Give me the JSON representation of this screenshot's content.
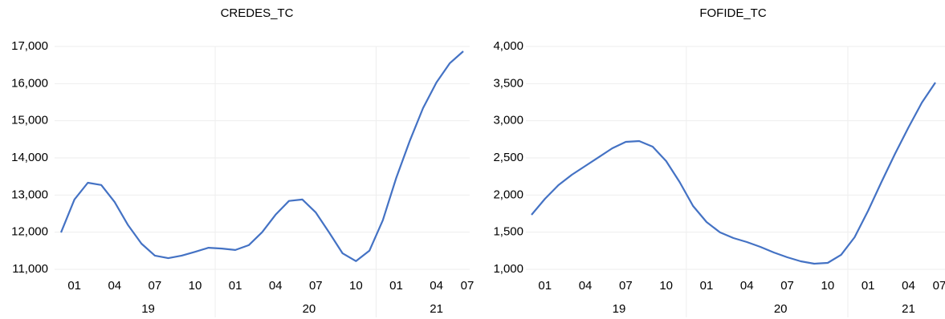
{
  "chart_data": [
    {
      "type": "line",
      "title": "CREDES_TC",
      "color": "#4472c4",
      "grid": true,
      "categories": [
        "01",
        null,
        null,
        "04",
        null,
        null,
        "07",
        null,
        null,
        "10",
        null,
        null,
        "01",
        null,
        null,
        "04",
        null,
        null,
        "07",
        null,
        null,
        "10",
        null,
        null,
        "01",
        null,
        null,
        "04",
        null,
        null,
        "07"
      ],
      "groups": [
        "19",
        "20",
        "21"
      ],
      "values": [
        11990,
        12880,
        13330,
        13270,
        12810,
        12190,
        11690,
        11370,
        11300,
        11370,
        11470,
        11580,
        11560,
        11520,
        11650,
        12000,
        12470,
        12840,
        12880,
        12530,
        11990,
        11430,
        11220,
        11500,
        12320,
        13460,
        14450,
        15340,
        16030,
        16550,
        16870
      ],
      "ylim": [
        11000,
        17000
      ],
      "yticks": [
        {
          "value": 11000,
          "label": "11,000"
        },
        {
          "value": 12000,
          "label": "12,000"
        },
        {
          "value": 13000,
          "label": "13,000"
        },
        {
          "value": 14000,
          "label": "14,000"
        },
        {
          "value": 15000,
          "label": "15,000"
        },
        {
          "value": 16000,
          "label": "16,000"
        },
        {
          "value": 17000,
          "label": "17,000"
        }
      ]
    },
    {
      "type": "line",
      "title": "FOFIDE_TC",
      "color": "#4472c4",
      "grid": true,
      "categories": [
        "01",
        null,
        null,
        "04",
        null,
        null,
        "07",
        null,
        null,
        "10",
        null,
        null,
        "01",
        null,
        null,
        "04",
        null,
        null,
        "07",
        null,
        null,
        "10",
        null,
        null,
        "01",
        null,
        null,
        "04",
        null,
        null,
        "07"
      ],
      "groups": [
        "19",
        "20",
        "21"
      ],
      "values": [
        1734,
        1950,
        2133,
        2273,
        2392,
        2510,
        2630,
        2716,
        2727,
        2651,
        2457,
        2176,
        1853,
        1637,
        1497,
        1421,
        1367,
        1302,
        1227,
        1162,
        1108,
        1076,
        1086,
        1195,
        1432,
        1788,
        2176,
        2554,
        2910,
        3245,
        3514
      ],
      "ylim": [
        1000,
        4000
      ],
      "yticks": [
        {
          "value": 1000,
          "label": "1,000"
        },
        {
          "value": 1500,
          "label": "1,500"
        },
        {
          "value": 2000,
          "label": "2,000"
        },
        {
          "value": 2500,
          "label": "2,500"
        },
        {
          "value": 3000,
          "label": "3,000"
        },
        {
          "value": 3500,
          "label": "3,500"
        },
        {
          "value": 4000,
          "label": "4,000"
        }
      ]
    }
  ]
}
